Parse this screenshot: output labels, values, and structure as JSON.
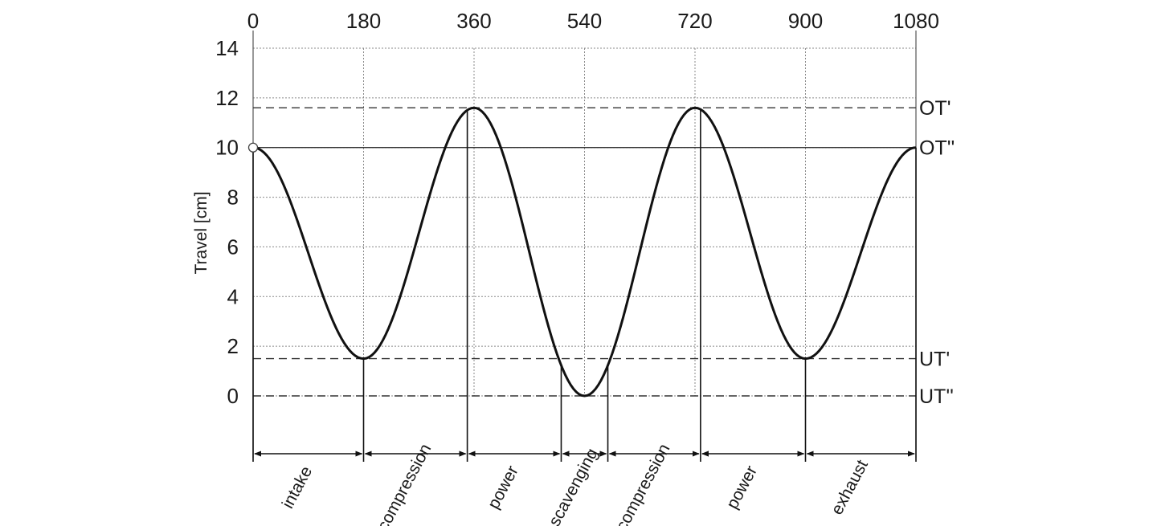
{
  "chart_data": {
    "type": "line",
    "title": "",
    "xlabel": "",
    "ylabel": "Travel [cm]",
    "x_ticks": [
      0,
      180,
      360,
      540,
      720,
      900,
      1080
    ],
    "y_ticks": [
      0,
      2,
      4,
      6,
      8,
      10,
      12,
      14
    ],
    "xlim": [
      0,
      1080
    ],
    "ylim": [
      0,
      14
    ],
    "grid": true,
    "x_axis_position": "top",
    "series": [
      {
        "x": [
          0,
          180,
          360,
          540,
          720,
          900,
          1080
        ],
        "y": [
          10,
          1.5,
          11.6,
          0,
          11.6,
          1.5,
          10
        ]
      }
    ],
    "reference_lines": [
      {
        "label": "OT'",
        "y": 11.6,
        "style": "dashed"
      },
      {
        "label": "OT''",
        "y": 10,
        "style": "solid"
      },
      {
        "label": "UT'",
        "y": 1.5,
        "style": "dashed"
      },
      {
        "label": "UT''",
        "y": 0,
        "style": "dashed"
      }
    ],
    "phase_boundaries": [
      0,
      180,
      349,
      502,
      578,
      729,
      900,
      1080
    ],
    "phases": [
      "intake",
      "compression",
      "power",
      "scavenging",
      "compression",
      "power",
      "exhaust"
    ]
  }
}
